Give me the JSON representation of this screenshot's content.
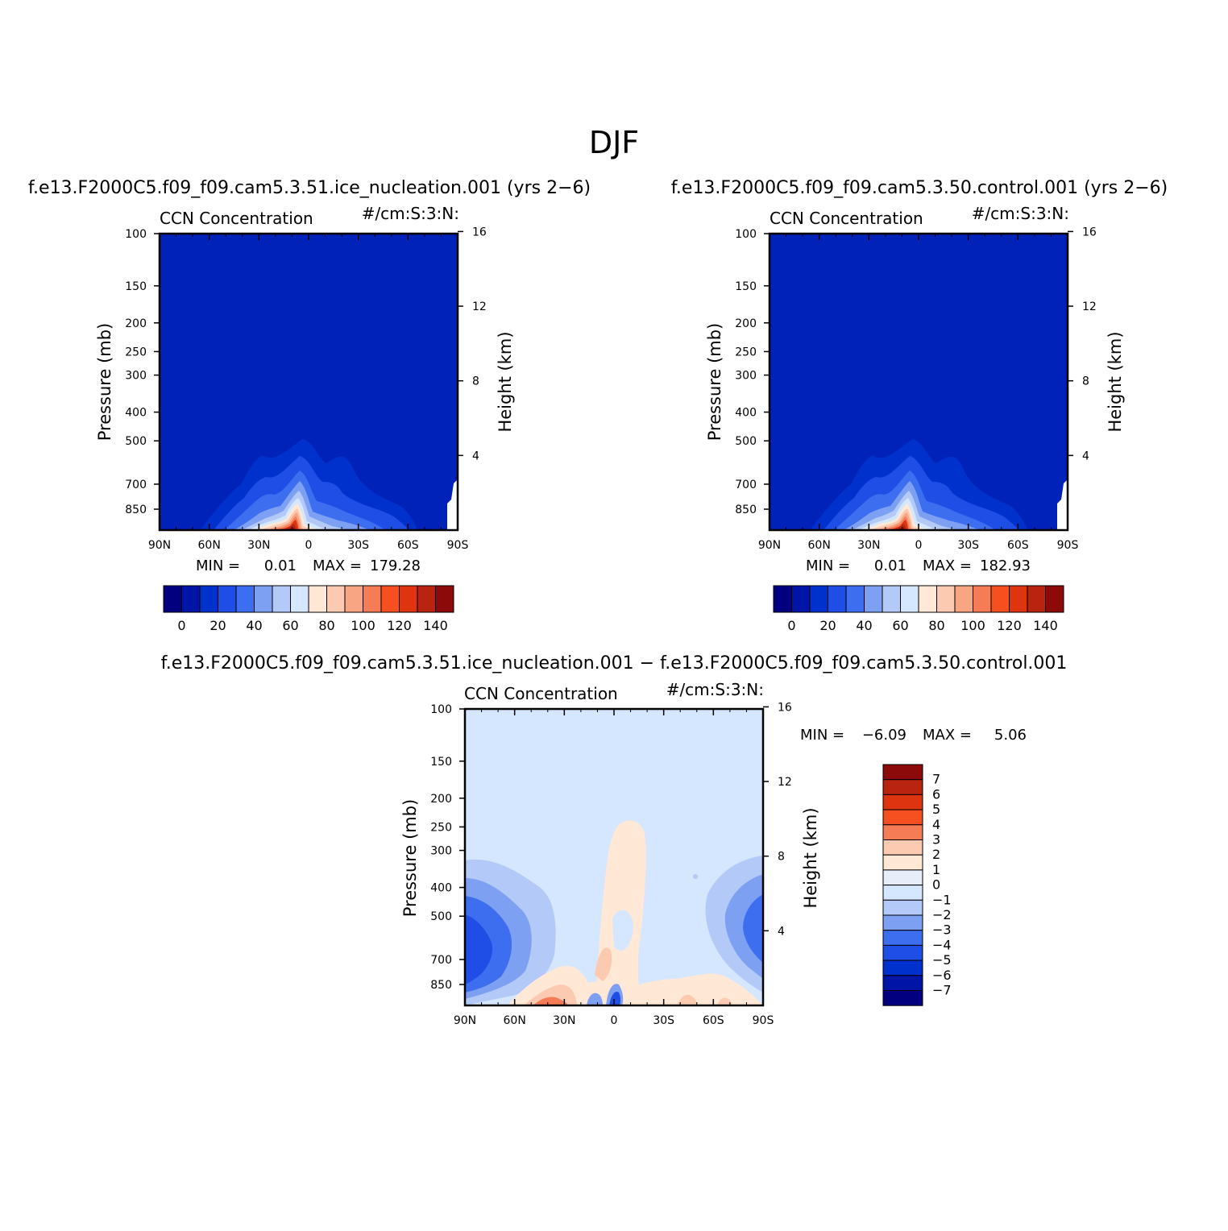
{
  "page": {
    "title": "DJF"
  },
  "panels": [
    {
      "case_title": "f.e13.F2000C5.f09_f09.cam5.3.51.ice_nucleation.001 (yrs 2−6)",
      "var_left": "CCN Concentration",
      "var_right": "#/cm:S:3:N:",
      "stats": {
        "min_label": "MIN =",
        "min": "0.01",
        "max_label": "MAX =",
        "max": "179.28"
      }
    },
    {
      "case_title": "f.e13.F2000C5.f09_f09.cam5.3.50.control.001 (yrs 2−6)",
      "var_left": "CCN Concentration",
      "var_right": "#/cm:S:3:N:",
      "stats": {
        "min_label": "MIN =",
        "min": "0.01",
        "max_label": "MAX =",
        "max": "182.93"
      }
    },
    {
      "case_title": "f.e13.F2000C5.f09_f09.cam5.3.51.ice_nucleation.001 − f.e13.F2000C5.f09_f09.cam5.3.50.control.001",
      "var_left": "CCN Concentration",
      "var_right": "#/cm:S:3:N:",
      "stats": {
        "min_label": "MIN =",
        "min": "−6.09",
        "max_label": "MAX =",
        "max": "5.06"
      }
    }
  ],
  "chart_data": [
    {
      "type": "heatmap",
      "description_of_field": "zonal-mean latitude-pressure contour",
      "xlabel": "",
      "ylabel": "Pressure (mb)",
      "y2label": "Height (km)",
      "x_ticks": [
        "90N",
        "60N",
        "30N",
        "0",
        "30S",
        "60S",
        "90S"
      ],
      "y_ticks": [
        100,
        150,
        200,
        250,
        300,
        400,
        500,
        700,
        850
      ],
      "y2_ticks": [
        16,
        12,
        8,
        4
      ],
      "ylim": [
        100,
        1000
      ],
      "yscale": "log",
      "colorbar_labels": [
        "0",
        "20",
        "40",
        "60",
        "80",
        "100",
        "120",
        "140"
      ],
      "colorbar_levels": [
        0,
        10,
        20,
        30,
        40,
        50,
        60,
        70,
        80,
        90,
        100,
        110,
        120,
        130,
        140
      ],
      "colorbar_colors": [
        "#03007f",
        "#0015a5",
        "#0031cc",
        "#1e4ee6",
        "#3d6ef0",
        "#7ea0f2",
        "#b3c9f8",
        "#d5e6ff",
        "#ffe8d6",
        "#fcc9b1",
        "#f7a583",
        "#f57c55",
        "#f64f20",
        "#de3510",
        "#b92410",
        "#8c0a0a"
      ],
      "min": 0.01,
      "max": 179.28
    },
    {
      "type": "heatmap",
      "xlabel": "",
      "ylabel": "Pressure (mb)",
      "y2label": "Height (km)",
      "x_ticks": [
        "90N",
        "60N",
        "30N",
        "0",
        "30S",
        "60S",
        "90S"
      ],
      "y_ticks": [
        100,
        150,
        200,
        250,
        300,
        400,
        500,
        700,
        850
      ],
      "y2_ticks": [
        16,
        12,
        8,
        4
      ],
      "ylim": [
        100,
        1000
      ],
      "yscale": "log",
      "colorbar_labels": [
        "0",
        "20",
        "40",
        "60",
        "80",
        "100",
        "120",
        "140"
      ],
      "min": 0.01,
      "max": 182.93
    },
    {
      "type": "heatmap",
      "xlabel": "",
      "ylabel": "Pressure (mb)",
      "y2label": "Height (km)",
      "x_ticks": [
        "90N",
        "60N",
        "30N",
        "0",
        "30S",
        "60S",
        "90S"
      ],
      "y_ticks": [
        100,
        150,
        200,
        250,
        300,
        400,
        500,
        700,
        850
      ],
      "y2_ticks": [
        16,
        12,
        8,
        4
      ],
      "ylim": [
        100,
        1000
      ],
      "yscale": "log",
      "colorbar_labels": [
        "7",
        "6",
        "5",
        "4",
        "3",
        "2",
        "1",
        "0",
        "−1",
        "−2",
        "−3",
        "−4",
        "−5",
        "−6",
        "−7"
      ],
      "colorbar_colors": [
        "#8c0a0a",
        "#b92410",
        "#de3510",
        "#f64f20",
        "#f57c55",
        "#fcc9b1",
        "#ffe8d6",
        "#e6eefa",
        "#d5e6ff",
        "#b3c9f8",
        "#7ea0f2",
        "#3d6ef0",
        "#1e4ee6",
        "#0031cc",
        "#0015a5",
        "#03007f"
      ],
      "min": -6.09,
      "max": 5.06
    }
  ]
}
